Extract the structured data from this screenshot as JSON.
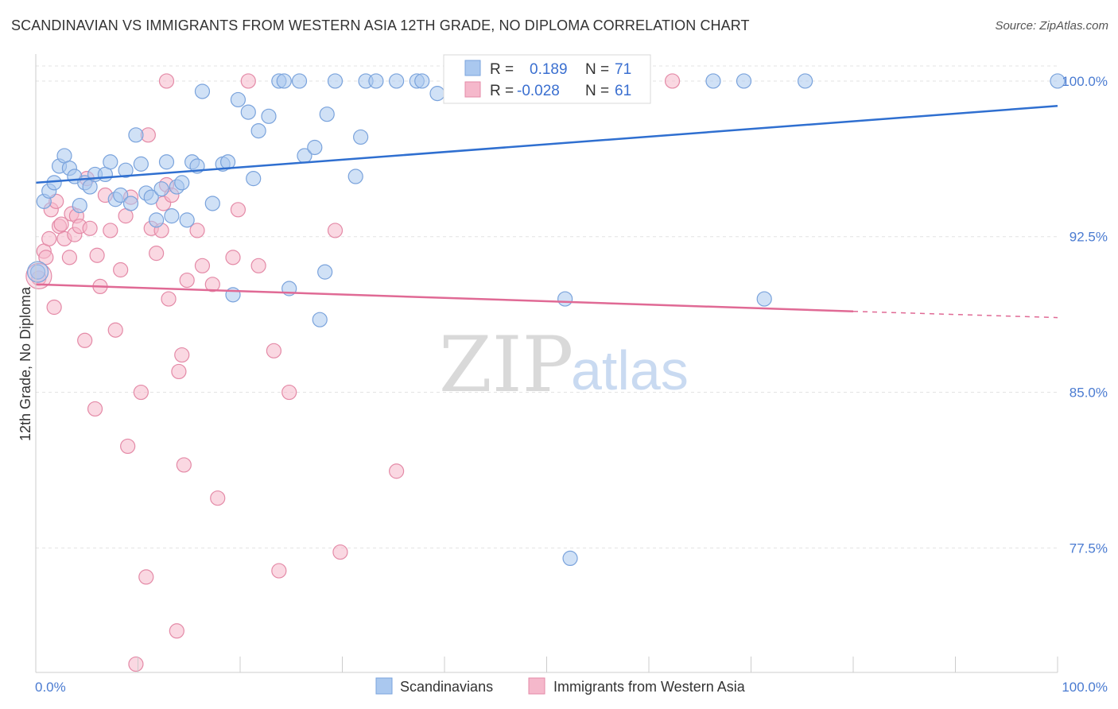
{
  "title": "SCANDINAVIAN VS IMMIGRANTS FROM WESTERN ASIA 12TH GRADE, NO DIPLOMA CORRELATION CHART",
  "source": "Source: ZipAtlas.com",
  "watermark": {
    "zip": "ZIP",
    "atlas": "atlas"
  },
  "colors": {
    "blue_fill": "#aac8ef",
    "blue_stroke": "#7aa3dc",
    "blue_line": "#2f6fd0",
    "pink_fill": "#f5b8cb",
    "pink_stroke": "#e48aa7",
    "pink_line": "#e06a95",
    "grid": "#e3e3e3",
    "axis_text": "#4a7bd1"
  },
  "legend": {
    "rows": [
      {
        "r_label": "R =",
        "r_value": "0.189",
        "n_label": "N =",
        "n_value": "71"
      },
      {
        "r_label": "R =",
        "r_value": "-0.028",
        "n_label": "N =",
        "n_value": "61"
      }
    ]
  },
  "chart_data": {
    "type": "scatter",
    "title": "SCANDINAVIAN VS IMMIGRANTS FROM WESTERN ASIA 12TH GRADE, NO DIPLOMA CORRELATION CHART",
    "xlabel": "",
    "ylabel": "12th Grade, No Diploma",
    "xlim": [
      0,
      100
    ],
    "ylim": [
      71.5,
      101.3
    ],
    "x_tick_labels": [
      "0.0%",
      "100.0%"
    ],
    "y_ticks": [
      77.5,
      85.0,
      92.5,
      100.0
    ],
    "y_tick_labels": [
      "77.5%",
      "85.0%",
      "92.5%",
      "100.0%"
    ],
    "grid": true,
    "legend_position": "top-center",
    "series": [
      {
        "name": "Scandinavians",
        "trend": {
          "x": [
            0,
            100
          ],
          "y": [
            95.1,
            98.8
          ]
        },
        "points": [
          [
            0.8,
            94.2
          ],
          [
            1.3,
            94.7
          ],
          [
            1.8,
            95.1
          ],
          [
            2.3,
            95.9
          ],
          [
            2.8,
            96.4
          ],
          [
            3.3,
            95.8
          ],
          [
            3.8,
            95.4
          ],
          [
            4.3,
            94.0
          ],
          [
            4.8,
            95.1
          ],
          [
            5.3,
            94.9
          ],
          [
            5.8,
            95.5
          ],
          [
            6.8,
            95.5
          ],
          [
            7.3,
            96.1
          ],
          [
            7.8,
            94.3
          ],
          [
            8.3,
            94.5
          ],
          [
            8.8,
            95.7
          ],
          [
            9.3,
            94.1
          ],
          [
            9.8,
            97.4
          ],
          [
            10.3,
            96.0
          ],
          [
            10.8,
            94.6
          ],
          [
            11.3,
            94.4
          ],
          [
            11.8,
            93.3
          ],
          [
            12.3,
            94.8
          ],
          [
            12.8,
            96.1
          ],
          [
            13.3,
            93.5
          ],
          [
            13.8,
            94.9
          ],
          [
            14.3,
            95.1
          ],
          [
            14.8,
            93.3
          ],
          [
            15.3,
            96.1
          ],
          [
            15.8,
            95.9
          ],
          [
            16.3,
            99.5
          ],
          [
            17.3,
            94.1
          ],
          [
            18.3,
            96.0
          ],
          [
            18.8,
            96.1
          ],
          [
            19.3,
            89.7
          ],
          [
            19.8,
            99.1
          ],
          [
            20.8,
            98.5
          ],
          [
            21.3,
            95.3
          ],
          [
            21.8,
            97.6
          ],
          [
            22.8,
            98.3
          ],
          [
            23.8,
            100.0
          ],
          [
            24.3,
            100.0
          ],
          [
            24.8,
            90.0
          ],
          [
            25.8,
            100.0
          ],
          [
            26.3,
            96.4
          ],
          [
            27.3,
            96.8
          ],
          [
            27.8,
            88.5
          ],
          [
            28.3,
            90.8
          ],
          [
            28.5,
            98.4
          ],
          [
            29.3,
            100.0
          ],
          [
            31.3,
            95.4
          ],
          [
            31.8,
            97.3
          ],
          [
            32.3,
            100.0
          ],
          [
            33.3,
            100.0
          ],
          [
            35.3,
            100.0
          ],
          [
            37.3,
            100.0
          ],
          [
            37.8,
            100.0
          ],
          [
            39.3,
            99.4
          ],
          [
            41.3,
            100.0
          ],
          [
            42.3,
            100.0
          ],
          [
            46.3,
            100.0
          ],
          [
            47.8,
            100.0
          ],
          [
            51.3,
            100.0
          ],
          [
            51.8,
            89.5
          ],
          [
            52.3,
            77.0
          ],
          [
            66.3,
            100.0
          ],
          [
            69.3,
            100.0
          ],
          [
            71.3,
            89.5
          ],
          [
            75.3,
            100.0
          ],
          [
            100.0,
            100.0
          ],
          [
            0.2,
            90.8
          ]
        ]
      },
      {
        "name": "Immigrants from Western Asia",
        "trend": {
          "x": [
            0,
            80
          ],
          "y": [
            90.2,
            88.9
          ]
        },
        "trend_dashed": {
          "x": [
            80,
            100
          ],
          "y": [
            88.9,
            88.6
          ]
        },
        "points": [
          [
            0.3,
            90.5
          ],
          [
            0.8,
            91.8
          ],
          [
            1.0,
            91.5
          ],
          [
            1.3,
            92.4
          ],
          [
            1.5,
            93.8
          ],
          [
            1.8,
            89.1
          ],
          [
            2.0,
            94.2
          ],
          [
            2.3,
            93.0
          ],
          [
            2.5,
            93.1
          ],
          [
            2.8,
            92.4
          ],
          [
            3.3,
            91.5
          ],
          [
            3.5,
            93.6
          ],
          [
            3.8,
            92.6
          ],
          [
            4.0,
            93.5
          ],
          [
            4.3,
            93.0
          ],
          [
            4.8,
            87.5
          ],
          [
            5.0,
            95.3
          ],
          [
            5.3,
            92.9
          ],
          [
            5.8,
            84.2
          ],
          [
            6.0,
            91.6
          ],
          [
            6.3,
            90.1
          ],
          [
            6.8,
            94.5
          ],
          [
            7.3,
            92.8
          ],
          [
            7.8,
            88.0
          ],
          [
            8.3,
            90.9
          ],
          [
            8.8,
            93.5
          ],
          [
            9.0,
            82.4
          ],
          [
            9.3,
            94.4
          ],
          [
            9.8,
            71.9
          ],
          [
            10.3,
            85.0
          ],
          [
            10.8,
            76.1
          ],
          [
            11.0,
            97.4
          ],
          [
            11.3,
            92.9
          ],
          [
            11.8,
            91.7
          ],
          [
            12.3,
            92.8
          ],
          [
            12.5,
            94.1
          ],
          [
            12.8,
            95.0
          ],
          [
            13.0,
            89.5
          ],
          [
            13.3,
            94.5
          ],
          [
            13.8,
            73.5
          ],
          [
            14.0,
            86.0
          ],
          [
            14.3,
            86.8
          ],
          [
            14.5,
            81.5
          ],
          [
            14.8,
            90.4
          ],
          [
            15.8,
            92.8
          ],
          [
            16.3,
            91.1
          ],
          [
            17.3,
            90.2
          ],
          [
            17.8,
            79.9
          ],
          [
            19.3,
            91.5
          ],
          [
            19.8,
            93.8
          ],
          [
            20.8,
            100.0
          ],
          [
            21.8,
            91.1
          ],
          [
            23.3,
            87.0
          ],
          [
            23.8,
            76.4
          ],
          [
            24.8,
            85.0
          ],
          [
            29.3,
            92.8
          ],
          [
            29.8,
            77.3
          ],
          [
            35.3,
            81.2
          ],
          [
            53.3,
            100.0
          ],
          [
            62.3,
            100.0
          ],
          [
            12.8,
            100.0
          ]
        ]
      }
    ]
  }
}
